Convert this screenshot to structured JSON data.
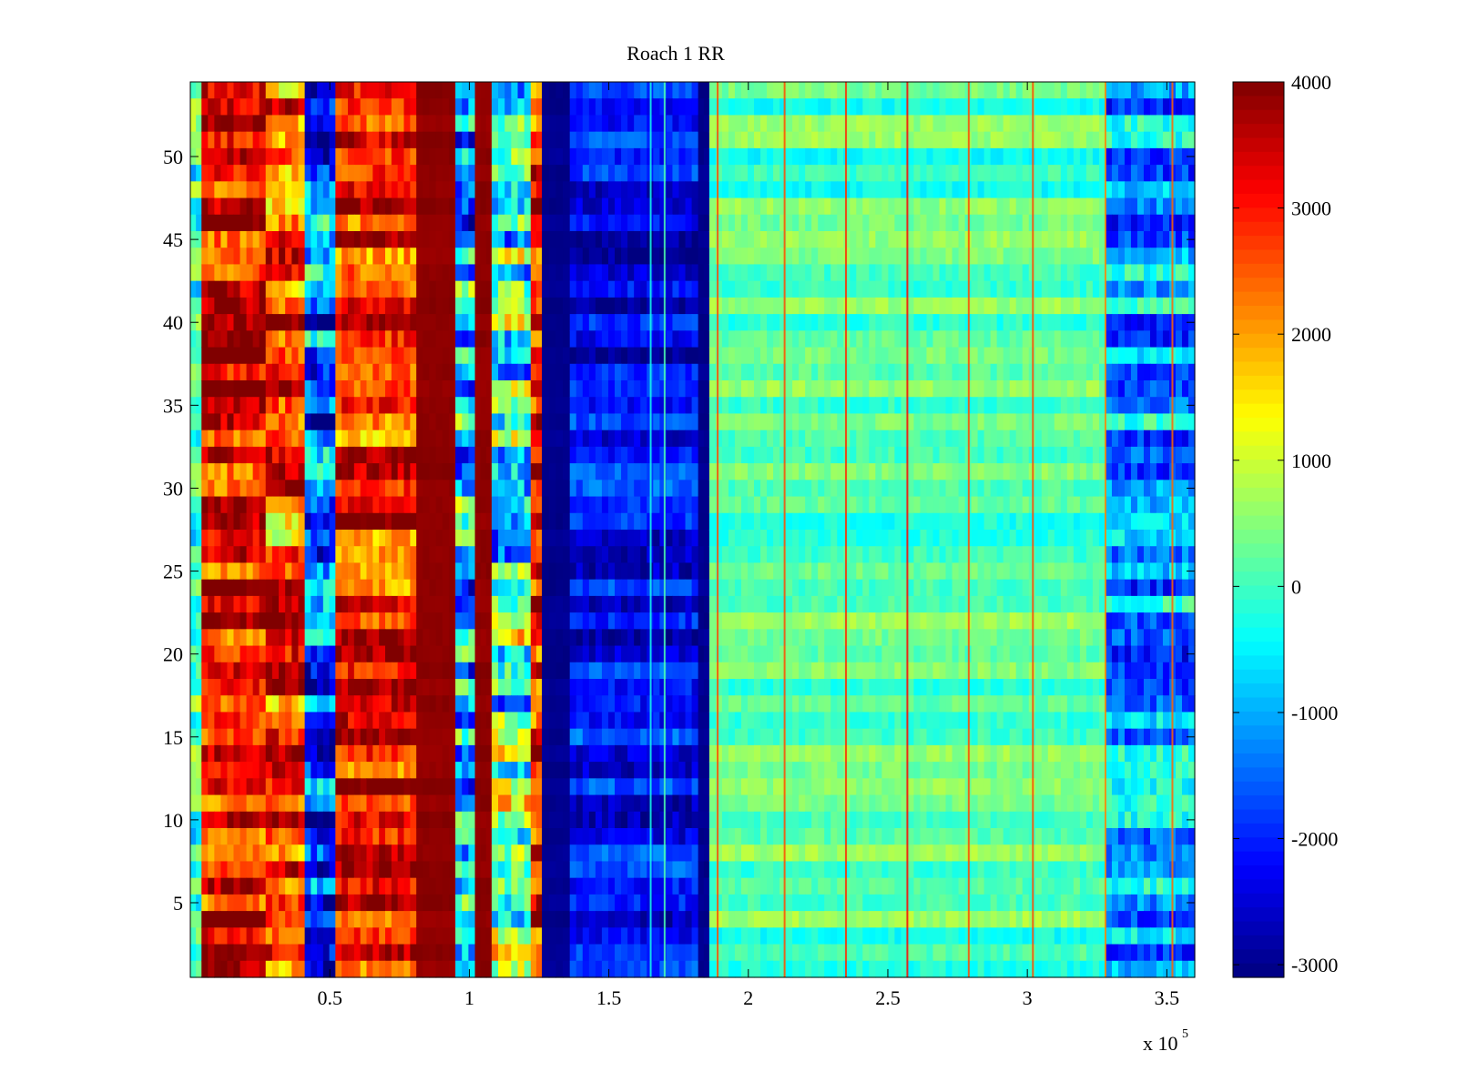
{
  "chart_data": {
    "type": "heatmap",
    "title": "Roach 1 RR",
    "xlabel": "",
    "ylabel": "",
    "x_multiplier_label": "x 10",
    "x_multiplier_exponent": "5",
    "xlim": [
      0,
      3.6
    ],
    "ylim": [
      0.5,
      54.5
    ],
    "xticks": [
      0.5,
      1,
      1.5,
      2,
      2.5,
      3,
      3.5
    ],
    "xtick_labels": [
      "0.5",
      "1",
      "1.5",
      "2",
      "2.5",
      "3",
      "3.5"
    ],
    "yticks": [
      5,
      10,
      15,
      20,
      25,
      30,
      35,
      40,
      45,
      50
    ],
    "ytick_labels": [
      "5",
      "10",
      "15",
      "20",
      "25",
      "30",
      "35",
      "40",
      "45",
      "50"
    ],
    "rows": 54,
    "colormap": "jet",
    "color_range": [
      -3100,
      4000
    ],
    "colorbar_ticks": [
      4000,
      3000,
      2000,
      1000,
      0,
      -1000,
      -2000,
      -3000
    ],
    "colorbar_tick_labels": [
      "4000",
      "3000",
      "2000",
      "1000",
      "0",
      "-1000",
      "-2000",
      "-3000"
    ],
    "column_bands": [
      {
        "x_start": 0.0,
        "x_end": 0.04,
        "level": 0,
        "row_variation": 0.5
      },
      {
        "x_start": 0.04,
        "x_end": 0.27,
        "level": 3400,
        "row_variation": 0.7
      },
      {
        "x_start": 0.27,
        "x_end": 0.41,
        "level": 2600,
        "row_variation": 0.8
      },
      {
        "x_start": 0.41,
        "x_end": 0.52,
        "level": -1700,
        "row_variation": 0.9
      },
      {
        "x_start": 0.52,
        "x_end": 0.81,
        "level": 3000,
        "row_variation": 0.7
      },
      {
        "x_start": 0.81,
        "x_end": 0.95,
        "level": 3900,
        "row_variation": 0.05
      },
      {
        "x_start": 0.95,
        "x_end": 1.02,
        "level": -900,
        "row_variation": 0.9
      },
      {
        "x_start": 1.02,
        "x_end": 1.08,
        "level": 3900,
        "row_variation": 0.05
      },
      {
        "x_start": 1.08,
        "x_end": 1.22,
        "level": 0,
        "row_variation": 1.0
      },
      {
        "x_start": 1.22,
        "x_end": 1.26,
        "level": 3000,
        "row_variation": 0.6
      },
      {
        "x_start": 1.26,
        "x_end": 1.36,
        "level": -3000,
        "row_variation": 0.05
      },
      {
        "x_start": 1.36,
        "x_end": 1.82,
        "level": -2300,
        "row_variation": 0.45
      },
      {
        "x_start": 1.82,
        "x_end": 1.86,
        "level": -3000,
        "row_variation": 0.05
      },
      {
        "x_start": 1.86,
        "x_end": 3.28,
        "level": 150,
        "row_variation": 0.3
      },
      {
        "x_start": 3.28,
        "x_end": 3.6,
        "level": -1100,
        "row_variation": 0.6
      }
    ],
    "vertical_lines": [
      {
        "x": 1.65,
        "level": -300
      },
      {
        "x": 1.7,
        "level": 100
      },
      {
        "x": 1.89,
        "level": 2600
      },
      {
        "x": 2.13,
        "level": 2600
      },
      {
        "x": 2.35,
        "level": 2800
      },
      {
        "x": 2.57,
        "level": 3100
      },
      {
        "x": 2.79,
        "level": 2600
      },
      {
        "x": 3.02,
        "level": 2600
      },
      {
        "x": 3.28,
        "level": 2200
      },
      {
        "x": 3.52,
        "level": 2400
      }
    ]
  }
}
